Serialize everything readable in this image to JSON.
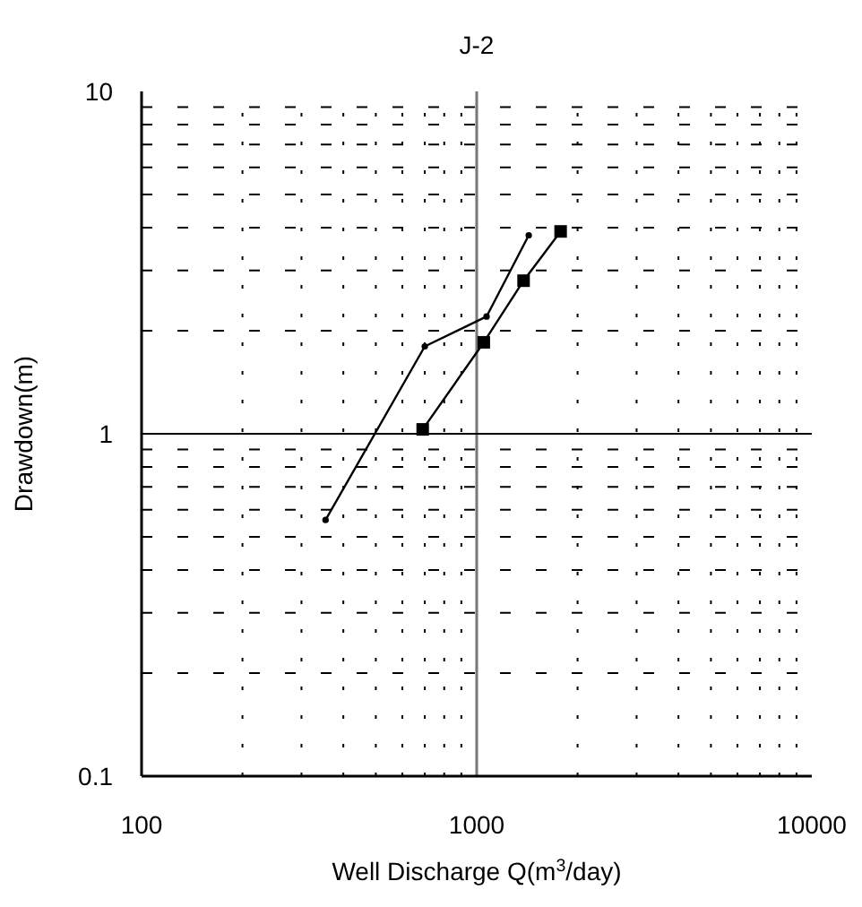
{
  "chart_data": {
    "type": "line",
    "title": "J-2",
    "xlabel": "Well Discharge Q(m$^{3}$/day)",
    "ylabel": "Drawdown(m)",
    "log": "xy",
    "grid": true,
    "ref_lines": [
      {
        "axis": "x",
        "value": 1000,
        "color": "#777777"
      },
      {
        "axis": "y",
        "value": 1,
        "color": "#000000"
      }
    ],
    "xlim": [
      100,
      10000
    ],
    "xticks": [
      100,
      {
        "value": 200,
        "label": null
      },
      {
        "value": 300,
        "label": null
      },
      {
        "value": 400,
        "label": null
      },
      {
        "value": 500,
        "label": null
      },
      {
        "value": 600,
        "label": null
      },
      {
        "value": 700,
        "label": null
      },
      {
        "value": 800,
        "label": null
      },
      {
        "value": 900,
        "label": null
      },
      1000,
      {
        "value": 2000,
        "label": null
      },
      {
        "value": 3000,
        "label": null
      },
      {
        "value": 4000,
        "label": null
      },
      {
        "value": 5000,
        "label": null
      },
      {
        "value": 6000,
        "label": null
      },
      {
        "value": 7000,
        "label": null
      },
      {
        "value": 8000,
        "label": null
      },
      {
        "value": 9000,
        "label": null
      },
      10000
    ],
    "ylim": [
      0.1,
      10
    ],
    "yticks": [
      0.1,
      {
        "value": 0.2,
        "label": null
      },
      {
        "value": 0.3,
        "label": null
      },
      {
        "value": 0.4,
        "label": null
      },
      {
        "value": 0.5,
        "label": null
      },
      {
        "value": 0.6,
        "label": null
      },
      {
        "value": 0.7,
        "label": null
      },
      {
        "value": 0.8,
        "label": null
      },
      {
        "value": 0.9,
        "label": null
      },
      1,
      {
        "value": 2,
        "label": null
      },
      {
        "value": 3,
        "label": null
      },
      {
        "value": 4,
        "label": null
      },
      {
        "value": 5,
        "label": null
      },
      {
        "value": 6,
        "label": null
      },
      {
        "value": 7,
        "label": null
      },
      {
        "value": 8,
        "label": null
      },
      {
        "value": 9,
        "label": null
      },
      10
    ],
    "series": [
      {
        "color": "#000000",
        "marker": "circle",
        "x": [
          354,
          700,
          1070,
          1430
        ],
        "values": [
          0.56,
          1.8,
          2.2,
          3.8
        ]
      },
      {
        "color": "#000000",
        "marker": "square",
        "x": [
          690,
          1050,
          1380,
          1780
        ],
        "values": [
          1.03,
          1.85,
          2.8,
          3.9
        ]
      }
    ]
  }
}
